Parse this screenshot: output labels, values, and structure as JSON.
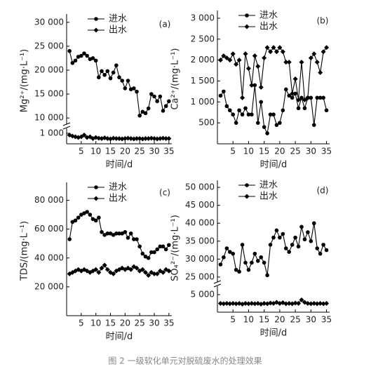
{
  "caption": "图 2 一级软化单元对脱硫废水的处理效果",
  "chart_data": [
    {
      "type": "line",
      "panel_label": "(a)",
      "xlabel": "时间/d",
      "ylabel": "Mg²⁺/(mg·L⁻¹)",
      "x": [
        1,
        2,
        3,
        4,
        5,
        6,
        7,
        8,
        9,
        10,
        11,
        12,
        13,
        14,
        15,
        16,
        17,
        18,
        19,
        20,
        21,
        22,
        23,
        24,
        25,
        26,
        27,
        28,
        29,
        30,
        31,
        32,
        33,
        34,
        35
      ],
      "xlim": [
        0,
        36
      ],
      "xticks": [
        5,
        10,
        15,
        20,
        25,
        30,
        35
      ],
      "ylim": [
        9000,
        31000
      ],
      "yticks": [
        {
          "value": 10000,
          "label": "10 000"
        },
        {
          "value": 15000,
          "label": "15 000"
        },
        {
          "value": 20000,
          "label": "20 000"
        },
        {
          "value": 25000,
          "label": "25 000"
        },
        {
          "value": 30000,
          "label": "30 000"
        }
      ],
      "ylim_lower": [
        700,
        1100
      ],
      "yticks_lower": [
        {
          "value": 1000,
          "label": "1 000"
        }
      ],
      "series": [
        {
          "name": "进水",
          "marker": "circle",
          "color": "#000000",
          "values": [
            24000,
            21500,
            22000,
            22800,
            23000,
            23500,
            23000,
            22300,
            22500,
            22000,
            18500,
            19800,
            19000,
            19800,
            18300,
            19500,
            21000,
            18500,
            17800,
            16200,
            17800,
            16000,
            16200,
            15500,
            10500,
            11300,
            11000,
            12000,
            15000,
            14500,
            13500,
            14500,
            11500,
            12500,
            13500
          ]
        },
        {
          "name": "出水",
          "marker": "diamond",
          "color": "#000000",
          "values": [
            950,
            920,
            900,
            880,
            900,
            950,
            880,
            900,
            850,
            880,
            860,
            850,
            870,
            850,
            840,
            860,
            850,
            850,
            840,
            850,
            860,
            850,
            840,
            850,
            850,
            840,
            850,
            850,
            860,
            850,
            840,
            850,
            860,
            850,
            850
          ]
        }
      ]
    },
    {
      "type": "line",
      "panel_label": "(b)",
      "xlabel": "时间/d",
      "ylabel": "Ca²⁺/(mg·L⁻¹)",
      "x": [
        1,
        2,
        3,
        4,
        5,
        6,
        7,
        8,
        9,
        10,
        11,
        12,
        13,
        14,
        15,
        16,
        17,
        18,
        19,
        20,
        21,
        22,
        23,
        24,
        25,
        26,
        27,
        28,
        29,
        30,
        31,
        32,
        33,
        34,
        35
      ],
      "xlim": [
        0,
        36
      ],
      "xticks": [
        5,
        10,
        15,
        20,
        25,
        30,
        35
      ],
      "ylim": [
        0,
        3100
      ],
      "yticks": [
        500,
        {
          "value": 1000,
          "label": "1 000"
        },
        {
          "value": 1500,
          "label": "1 500"
        },
        {
          "value": 2000,
          "label": "2 000"
        },
        {
          "value": 2500,
          "label": "2 500"
        },
        {
          "value": 3000,
          "label": "3 000"
        }
      ],
      "series": [
        {
          "name": "进水",
          "marker": "circle",
          "color": "#000000",
          "values": [
            1150,
            1250,
            900,
            800,
            700,
            500,
            800,
            700,
            850,
            700,
            700,
            1400,
            500,
            1000,
            400,
            250,
            700,
            700,
            450,
            500,
            800,
            1300,
            1150,
            1100,
            1200,
            850,
            1100,
            850,
            1100,
            1100,
            450,
            1100,
            1100,
            1100,
            800
          ]
        },
        {
          "name": "出水",
          "marker": "diamond",
          "color": "#000000",
          "values": [
            2000,
            2100,
            2050,
            2000,
            2150,
            1900,
            2000,
            1100,
            2150,
            1800,
            1400,
            2100,
            1850,
            1350,
            2050,
            2300,
            2200,
            2300,
            2200,
            2300,
            2200,
            1950,
            1950,
            1200,
            1550,
            1050,
            1950,
            1050,
            1100,
            2050,
            2150,
            1950,
            1700,
            2200,
            2300
          ]
        }
      ]
    },
    {
      "type": "line",
      "panel_label": "(c)",
      "xlabel": "时间/d",
      "ylabel": "TDS/(mg·L⁻¹)",
      "x": [
        1,
        2,
        3,
        4,
        5,
        6,
        7,
        8,
        9,
        10,
        11,
        12,
        13,
        14,
        15,
        16,
        17,
        18,
        19,
        20,
        21,
        22,
        23,
        24,
        25,
        26,
        27,
        28,
        29,
        30,
        31,
        32,
        33,
        34,
        35
      ],
      "xlim": [
        0,
        36
      ],
      "xticks": [
        5,
        10,
        15,
        20,
        25,
        30,
        35
      ],
      "ylim": [
        0,
        90000
      ],
      "yticks": [
        {
          "value": 20000,
          "label": "20 000"
        },
        {
          "value": 40000,
          "label": "40 000"
        },
        {
          "value": 60000,
          "label": "60 000"
        },
        {
          "value": 80000,
          "label": "80 000"
        }
      ],
      "series": [
        {
          "name": "进水",
          "marker": "circle",
          "color": "#000000",
          "values": [
            53000,
            65000,
            66000,
            68000,
            70000,
            71000,
            72000,
            70000,
            67000,
            66000,
            68000,
            58000,
            56000,
            57000,
            57000,
            56000,
            57000,
            57000,
            57000,
            58000,
            54000,
            57000,
            53000,
            53000,
            48000,
            43000,
            41000,
            40000,
            44000,
            44000,
            46000,
            48000,
            48000,
            46000,
            49000
          ]
        },
        {
          "name": "出水",
          "marker": "diamond",
          "color": "#000000",
          "values": [
            29000,
            30000,
            31000,
            32000,
            31000,
            32000,
            31000,
            30000,
            31000,
            32000,
            30000,
            33000,
            35000,
            32000,
            30000,
            29000,
            31000,
            32000,
            33000,
            32000,
            33000,
            32000,
            34000,
            33000,
            31000,
            32000,
            30000,
            28000,
            30000,
            29000,
            29000,
            31000,
            30000,
            32000,
            31000
          ]
        }
      ]
    },
    {
      "type": "line",
      "panel_label": "(d)",
      "xlabel": "时间/d",
      "ylabel": "SO₄²⁻/(mg·L⁻¹)",
      "x": [
        1,
        2,
        3,
        4,
        5,
        6,
        7,
        8,
        9,
        10,
        11,
        12,
        13,
        14,
        15,
        16,
        17,
        18,
        19,
        20,
        21,
        22,
        23,
        24,
        25,
        26,
        27,
        28,
        29,
        30,
        31,
        32,
        33,
        34,
        35
      ],
      "xlim": [
        0,
        36
      ],
      "xticks": [
        5,
        10,
        15,
        20,
        25,
        30,
        35
      ],
      "ylim": [
        24000,
        51000
      ],
      "yticks": [
        {
          "value": 25000,
          "label": "25 000"
        },
        {
          "value": 30000,
          "label": "30 000"
        },
        {
          "value": 35000,
          "label": "35 000"
        },
        {
          "value": 40000,
          "label": "40 000"
        },
        {
          "value": 45000,
          "label": "45 000"
        },
        {
          "value": 50000,
          "label": "50 000"
        }
      ],
      "ylim_lower": [
        0,
        7000
      ],
      "yticks_lower": [
        {
          "value": 5000,
          "label": "5 000"
        }
      ],
      "series": [
        {
          "name": "进水",
          "marker": "circle",
          "color": "#000000",
          "values": [
            28500,
            30500,
            33000,
            32000,
            31500,
            27000,
            26500,
            34000,
            29000,
            27000,
            29000,
            31500,
            29500,
            30500,
            29000,
            25500,
            34000,
            36000,
            38000,
            36000,
            37000,
            33000,
            32000,
            34000,
            36000,
            33500,
            39000,
            35500,
            37500,
            35000,
            40000,
            33000,
            31500,
            34000,
            32500
          ]
        },
        {
          "name": "出水",
          "marker": "diamond",
          "color": "#000000",
          "values": [
            2500,
            2400,
            2500,
            2400,
            2500,
            2400,
            2500,
            2300,
            2500,
            2400,
            2500,
            2400,
            2500,
            2300,
            2500,
            2400,
            2600,
            2500,
            2800,
            2500,
            2700,
            2400,
            2500,
            2400,
            2600,
            2500,
            3500,
            2800,
            2500,
            2400,
            2500,
            2400,
            2500,
            2400,
            2500
          ]
        }
      ]
    }
  ]
}
